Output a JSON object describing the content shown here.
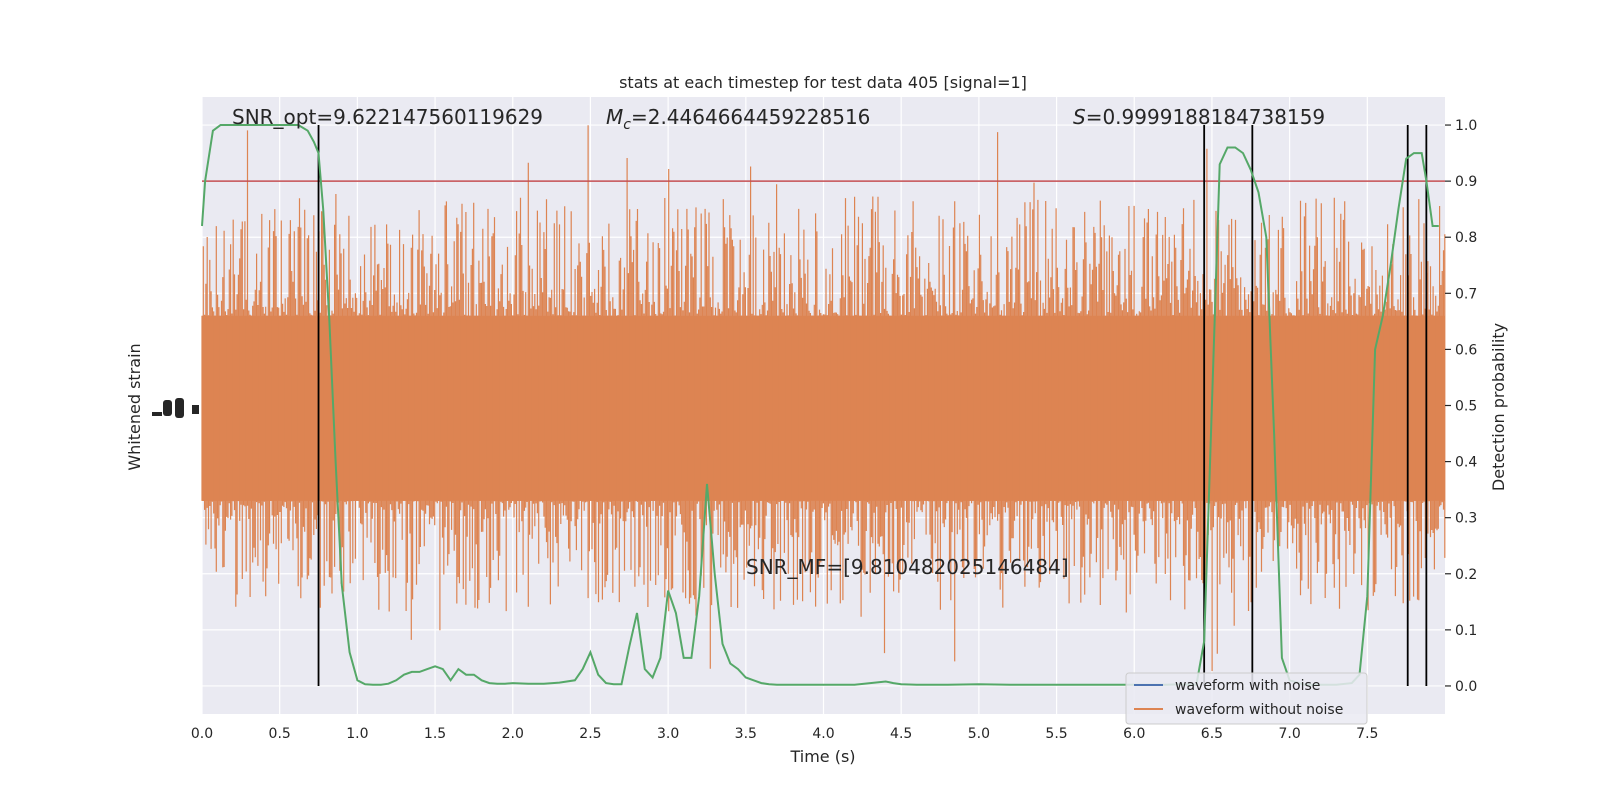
{
  "chart_data": {
    "type": "line",
    "title": "stats at each timestep for test data 405 [signal=1]",
    "xlabel": "Time (s)",
    "ylabel_left": "Whitened strain",
    "ylabel_right": "Detection probability",
    "xlim": [
      0.0,
      8.0
    ],
    "ylim_right": [
      -0.05,
      1.05
    ],
    "xticks": [
      0.0,
      0.5,
      1.0,
      1.5,
      2.0,
      2.5,
      3.0,
      3.5,
      4.0,
      4.5,
      5.0,
      5.5,
      6.0,
      6.5,
      7.0,
      7.5
    ],
    "xtick_labels": [
      "0.0",
      "0.5",
      "1.0",
      "1.5",
      "2.0",
      "2.5",
      "3.0",
      "3.5",
      "4.0",
      "4.5",
      "5.0",
      "5.5",
      "6.0",
      "6.5",
      "7.0",
      "7.5"
    ],
    "yticks_right": [
      0.0,
      0.1,
      0.2,
      0.3,
      0.4,
      0.5,
      0.6,
      0.7,
      0.8,
      0.9,
      1.0
    ],
    "ytick_labels_right": [
      "0.0",
      "0.1",
      "0.2",
      "0.3",
      "0.4",
      "0.5",
      "0.6",
      "0.7",
      "0.8",
      "0.9",
      "1.0"
    ],
    "grid": true,
    "legend_position": "lower-right",
    "threshold": 0.9,
    "vertical_lines_x": [
      0.75,
      6.45,
      6.76,
      7.76,
      7.88
    ],
    "annotations": {
      "snr_opt": "SNR_opt=9.622147560119629",
      "mc": "=2.4464664459228516",
      "s": "=0.9999188184738159",
      "snr_mf": "SNR_MF=[9.810482025146484]"
    },
    "series": [
      {
        "name": "waveform with noise",
        "color": "#4c72b0"
      },
      {
        "name": "waveform without noise",
        "color": "#dd8452"
      },
      {
        "color": "#55a868",
        "x": [
          0.0,
          0.02,
          0.07,
          0.12,
          0.17,
          0.25,
          0.35,
          0.45,
          0.55,
          0.62,
          0.68,
          0.72,
          0.75,
          0.78,
          0.82,
          0.86,
          0.9,
          0.95,
          1.0,
          1.05,
          1.1,
          1.15,
          1.2,
          1.25,
          1.3,
          1.35,
          1.4,
          1.45,
          1.5,
          1.55,
          1.6,
          1.65,
          1.7,
          1.75,
          1.8,
          1.85,
          1.9,
          1.95,
          2.0,
          2.1,
          2.2,
          2.3,
          2.4,
          2.45,
          2.5,
          2.55,
          2.6,
          2.65,
          2.7,
          2.75,
          2.8,
          2.85,
          2.9,
          2.95,
          3.0,
          3.05,
          3.1,
          3.15,
          3.2,
          3.25,
          3.3,
          3.35,
          3.4,
          3.45,
          3.5,
          3.55,
          3.6,
          3.65,
          3.7,
          3.8,
          3.9,
          4.0,
          4.2,
          4.4,
          4.45,
          4.5,
          4.6,
          4.8,
          5.0,
          5.2,
          5.4,
          5.6,
          5.8,
          6.0,
          6.1,
          6.2,
          6.3,
          6.35,
          6.4,
          6.45,
          6.5,
          6.55,
          6.6,
          6.65,
          6.7,
          6.75,
          6.8,
          6.85,
          6.9,
          6.95,
          7.0,
          7.1,
          7.2,
          7.3,
          7.4,
          7.45,
          7.5,
          7.55,
          7.6,
          7.65,
          7.7,
          7.75,
          7.8,
          7.85,
          7.88,
          7.92,
          7.96
        ],
        "y": [
          0.82,
          0.9,
          0.99,
          1.0,
          1.0,
          1.0,
          1.0,
          1.0,
          1.0,
          1.0,
          0.99,
          0.97,
          0.95,
          0.85,
          0.65,
          0.4,
          0.18,
          0.06,
          0.01,
          0.003,
          0.002,
          0.002,
          0.004,
          0.01,
          0.02,
          0.025,
          0.025,
          0.03,
          0.035,
          0.03,
          0.01,
          0.03,
          0.02,
          0.02,
          0.01,
          0.005,
          0.004,
          0.004,
          0.005,
          0.004,
          0.004,
          0.006,
          0.01,
          0.03,
          0.06,
          0.02,
          0.005,
          0.003,
          0.003,
          0.07,
          0.13,
          0.03,
          0.015,
          0.05,
          0.17,
          0.13,
          0.05,
          0.05,
          0.16,
          0.36,
          0.2,
          0.075,
          0.04,
          0.03,
          0.015,
          0.01,
          0.005,
          0.003,
          0.002,
          0.002,
          0.002,
          0.002,
          0.002,
          0.008,
          0.005,
          0.003,
          0.002,
          0.002,
          0.003,
          0.002,
          0.002,
          0.002,
          0.002,
          0.002,
          0.002,
          0.002,
          0.003,
          0.002,
          0.002,
          0.08,
          0.5,
          0.93,
          0.96,
          0.96,
          0.95,
          0.92,
          0.88,
          0.8,
          0.45,
          0.05,
          0.01,
          0.002,
          0.002,
          0.002,
          0.005,
          0.02,
          0.16,
          0.6,
          0.66,
          0.75,
          0.85,
          0.94,
          0.95,
          0.95,
          0.9,
          0.82,
          0.82
        ]
      }
    ]
  }
}
